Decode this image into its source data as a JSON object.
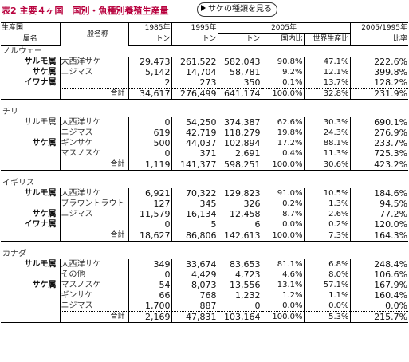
{
  "title": "表2 主要４ヶ国　国別・魚種別養殖生産量",
  "button_label": "サケの種類を見る",
  "header": {
    "country": "生産国",
    "genus": "属名",
    "common_name": "一般名称",
    "y1985": "1985年",
    "y1995": "1995年",
    "y2005": "2005年",
    "y2005_1995": "2005/1995年",
    "ton1": "トン",
    "ton2": "トン",
    "ton3": "トン",
    "domestic": "国内比",
    "world": "世界生産比",
    "ratio": "比率"
  },
  "total_label": "合計",
  "countries": [
    {
      "name": "ノルウェー",
      "rows": [
        {
          "genus": "サルモ属",
          "common": "大西洋サケ",
          "v1985": "29,473",
          "v1995": "261,522",
          "v2005": "582,043",
          "dom": "90.8%",
          "world": "47.1%",
          "ratio": "222.6%"
        },
        {
          "genus": "サケ属",
          "common": "ニジマス",
          "v1985": "5,142",
          "v1995": "14,704",
          "v2005": "58,781",
          "dom": "9.2%",
          "world": "12.1%",
          "ratio": "399.8%"
        },
        {
          "genus": "イワナ属",
          "common": "",
          "v1985": "2",
          "v1995": "273",
          "v2005": "350",
          "dom": "0.1%",
          "world": "13.7%",
          "ratio": "128.2%"
        }
      ],
      "total": {
        "v1985": "34,617",
        "v1995": "276,499",
        "v2005": "641,174",
        "dom": "100.0%",
        "world": "32.8%",
        "ratio": "231.9%"
      }
    },
    {
      "name": "チリ",
      "rows": [
        {
          "genus": "サルモ属",
          "common": "大西洋サケ",
          "v1985": "0",
          "v1995": "54,250",
          "v2005": "374,387",
          "dom": "62.6%",
          "world": "30.3%",
          "ratio": "690.1%"
        },
        {
          "genus": "",
          "common": "ニジマス",
          "v1985": "619",
          "v1995": "42,719",
          "v2005": "118,279",
          "dom": "19.8%",
          "world": "24.3%",
          "ratio": "276.9%"
        },
        {
          "genus": "サケ属",
          "common": "ギンサケ",
          "v1985": "500",
          "v1995": "44,037",
          "v2005": "102,894",
          "dom": "17.2%",
          "world": "88.1%",
          "ratio": "233.7%"
        },
        {
          "genus": "",
          "common": "マスノスケ",
          "v1985": "0",
          "v1995": "371",
          "v2005": "2,691",
          "dom": "0.4%",
          "world": "11.3%",
          "ratio": "725.3%"
        }
      ],
      "total": {
        "v1985": "1,119",
        "v1995": "141,377",
        "v2005": "598,251",
        "dom": "100.0%",
        "world": "30.6%",
        "ratio": "423.2%"
      }
    },
    {
      "name": "イギリス",
      "rows": [
        {
          "genus": "サルモ属",
          "common": "大西洋サケ",
          "v1985": "6,921",
          "v1995": "70,322",
          "v2005": "129,823",
          "dom": "91.0%",
          "world": "10.5%",
          "ratio": "184.6%"
        },
        {
          "genus": "",
          "common": "ブラウントラウト",
          "v1985": "127",
          "v1995": "345",
          "v2005": "326",
          "dom": "0.2%",
          "world": "1.3%",
          "ratio": "94.5%"
        },
        {
          "genus": "サケ属",
          "common": "ニジマス",
          "v1985": "11,579",
          "v1995": "16,134",
          "v2005": "12,458",
          "dom": "8.7%",
          "world": "2.6%",
          "ratio": "77.2%"
        },
        {
          "genus": "イワナ属",
          "common": "",
          "v1985": "0",
          "v1995": "5",
          "v2005": "6",
          "dom": "0.0%",
          "world": "0.2%",
          "ratio": "120.0%"
        }
      ],
      "total": {
        "v1985": "18,627",
        "v1995": "86,806",
        "v2005": "142,613",
        "dom": "100.0%",
        "world": "7.3%",
        "ratio": "164.3%"
      }
    },
    {
      "name": "カナダ",
      "rows": [
        {
          "genus": "サルモ属",
          "common": "大西洋サケ",
          "v1985": "349",
          "v1995": "33,674",
          "v2005": "83,653",
          "dom": "81.1%",
          "world": "6.8%",
          "ratio": "248.4%"
        },
        {
          "genus": "",
          "common": "その他",
          "v1985": "0",
          "v1995": "4,429",
          "v2005": "4,723",
          "dom": "4.6%",
          "world": "8.0%",
          "ratio": "106.6%"
        },
        {
          "genus": "サケ属",
          "common": "マスノスケ",
          "v1985": "54",
          "v1995": "8,073",
          "v2005": "13,556",
          "dom": "13.1%",
          "world": "57.1%",
          "ratio": "167.9%"
        },
        {
          "genus": "",
          "common": "ギンサケ",
          "v1985": "66",
          "v1995": "768",
          "v2005": "1,232",
          "dom": "1.2%",
          "world": "1.1%",
          "ratio": "160.4%"
        },
        {
          "genus": "",
          "common": "ニジマス",
          "v1985": "1,700",
          "v1995": "887",
          "v2005": "0",
          "dom": "0.0%",
          "world": "0.0%",
          "ratio": "0.0%"
        }
      ],
      "total": {
        "v1985": "2,169",
        "v1995": "47,831",
        "v2005": "103,164",
        "dom": "100.0%",
        "world": "5.3%",
        "ratio": "215.7%"
      }
    }
  ]
}
